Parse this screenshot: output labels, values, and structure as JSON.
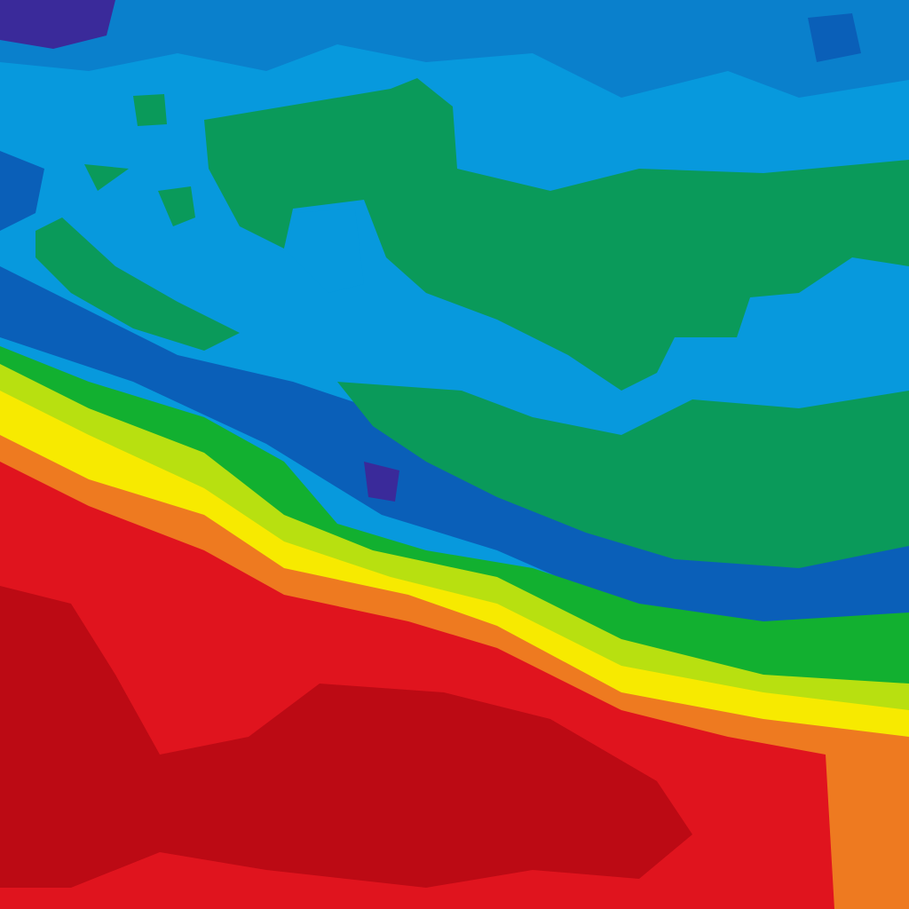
{
  "colors": {
    "deep_purple": "#3a2a9a",
    "dark_blue": "#0a5fb8",
    "mid_blue": "#0a80cc",
    "light_blue": "#0799dd",
    "green": "#0a9a5a",
    "bright_green": "#12b030",
    "yellow_green": "#b8e010",
    "yellow": "#f7ea00",
    "orange": "#ee7a20",
    "red": "#e0141e",
    "dark_red": "#bc0a14"
  }
}
